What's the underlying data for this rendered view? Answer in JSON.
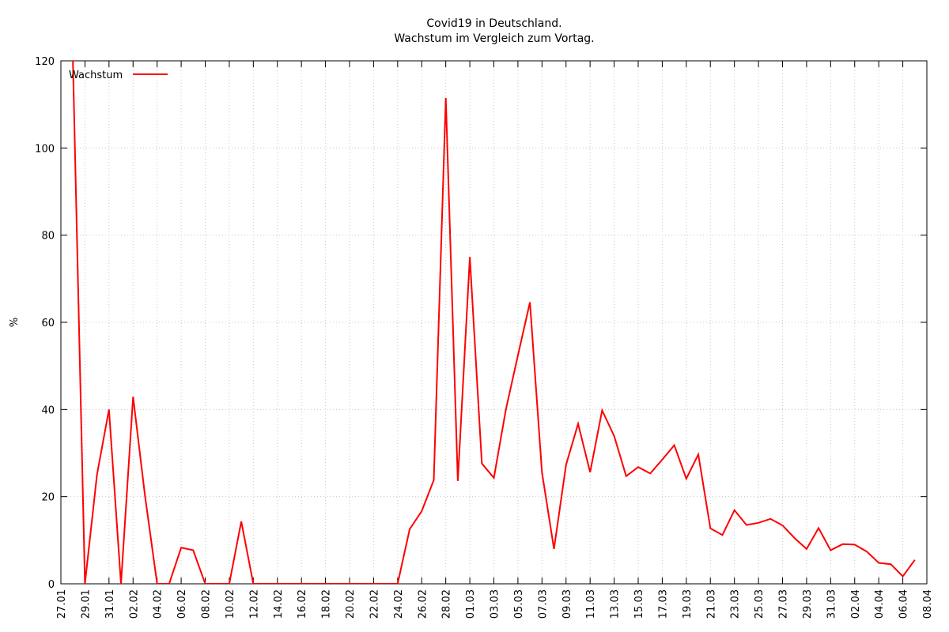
{
  "chart_data": {
    "type": "line",
    "title": "Covid19 in Deutschland.",
    "subtitle": "Wachstum im Vergleich zum Vortag.",
    "xlabel": "",
    "ylabel": "%",
    "ylim": [
      0,
      120
    ],
    "yticks": [
      0,
      20,
      40,
      60,
      80,
      100,
      120
    ],
    "xlim": [
      "27.01",
      "08.04"
    ],
    "xticks": [
      "27.01",
      "29.01",
      "31.01",
      "02.02",
      "04.02",
      "06.02",
      "08.02",
      "10.02",
      "12.02",
      "14.02",
      "16.02",
      "18.02",
      "20.02",
      "22.02",
      "24.02",
      "26.02",
      "28.02",
      "01.03",
      "03.03",
      "05.03",
      "07.03",
      "09.03",
      "11.03",
      "13.03",
      "15.03",
      "17.03",
      "19.03",
      "21.03",
      "23.03",
      "25.03",
      "27.03",
      "29.03",
      "31.03",
      "02.04",
      "04.04",
      "06.04",
      "08.04"
    ],
    "grid": true,
    "legend_position": "top-left",
    "series": [
      {
        "name": "Wachstum",
        "color": "#ff0000",
        "x": [
          "28.01",
          "29.01",
          "30.01",
          "31.01",
          "01.02",
          "02.02",
          "03.02",
          "04.02",
          "05.02",
          "06.02",
          "07.02",
          "08.02",
          "09.02",
          "10.02",
          "11.02",
          "12.02",
          "13.02",
          "14.02",
          "15.02",
          "16.02",
          "17.02",
          "18.02",
          "19.02",
          "20.02",
          "21.02",
          "22.02",
          "23.02",
          "24.02",
          "25.02",
          "26.02",
          "27.02",
          "28.02",
          "29.02",
          "01.03",
          "02.03",
          "03.03",
          "04.03",
          "05.03",
          "06.03",
          "07.03",
          "08.03",
          "09.03",
          "10.03",
          "11.03",
          "12.03",
          "13.03",
          "14.03",
          "15.03",
          "16.03",
          "17.03",
          "18.03",
          "19.03",
          "20.03",
          "21.03",
          "22.03",
          "23.03",
          "24.03",
          "25.03",
          "26.03",
          "27.03",
          "28.03",
          "29.03",
          "30.03",
          "31.03",
          "01.04",
          "02.04",
          "03.04",
          "04.04",
          "05.04",
          "06.04",
          "07.04"
        ],
        "values": [
          120,
          0,
          25,
          40,
          0,
          42.9,
          20,
          0,
          0,
          8.3,
          7.7,
          0,
          0,
          0,
          14.3,
          0,
          0,
          0,
          0,
          0,
          0,
          0,
          0,
          0,
          0,
          0,
          0,
          0,
          12.5,
          16.7,
          23.8,
          111.5,
          23.6,
          75,
          27.6,
          24.3,
          40,
          52.4,
          64.6,
          25.6,
          8,
          27.3,
          36.7,
          25.6,
          39.8,
          33.9,
          24.7,
          26.8,
          25.3,
          28.5,
          31.8,
          24.1,
          29.7,
          12.7,
          11.2,
          16.9,
          13.5,
          14,
          14.9,
          13.4,
          10.5,
          8,
          12.8,
          7.7,
          9.1,
          9,
          7.4,
          4.8,
          4.5,
          1.7,
          5.5
        ]
      }
    ]
  }
}
